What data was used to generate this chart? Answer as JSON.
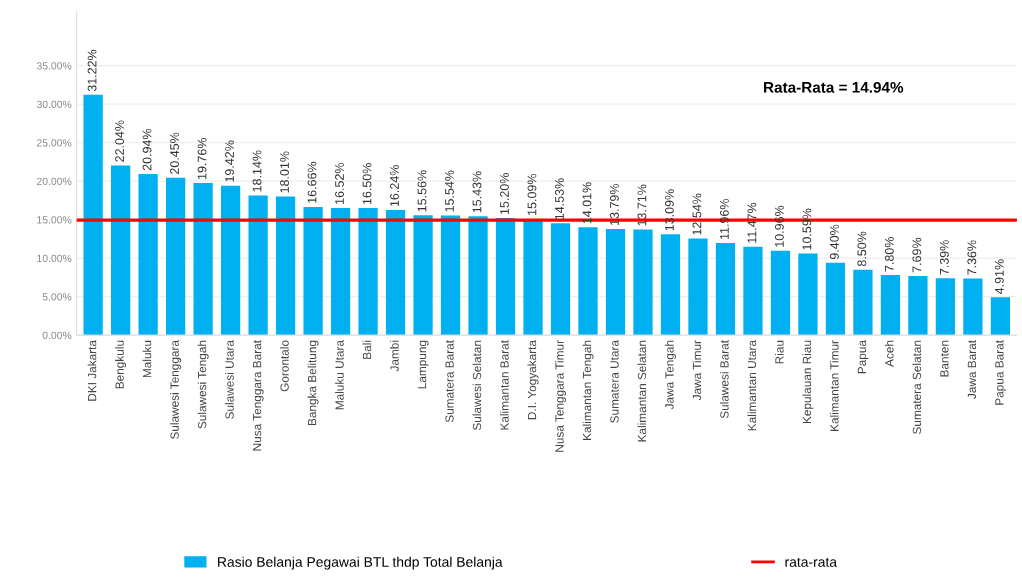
{
  "chart_data": {
    "type": "bar",
    "categories": [
      "DKI Jakarta",
      "Bengkulu",
      "Maluku",
      "Sulawesi Tenggara",
      "Sulawesi Tengah",
      "Sulawesi Utara",
      "Nusa Tenggara Barat",
      "Gorontalo",
      "Bangka Belitung",
      "Maluku Utara",
      "Bali",
      "Jambi",
      "Lampung",
      "Sumatera Barat",
      "Sulawesi Selatan",
      "Kalimantan Barat",
      "D.I. Yogyakarta",
      "Nusa Tenggara Timur",
      "Kalimantan Tengah",
      "Sumatera Utara",
      "Kalimantan Selatan",
      "Jawa Tengah",
      "Jawa Timur",
      "Sulawesi Barat",
      "Kalimantan Utara",
      "Riau",
      "Kepulauan Riau",
      "Kalimantan Timur",
      "Papua",
      "Aceh",
      "Sumatera Selatan",
      "Banten",
      "Jawa Barat",
      "Papua Barat"
    ],
    "series": [
      {
        "name": "Rasio Belanja Pegawai BTL thdp Total Belanja",
        "color": "#00b0f0",
        "values": [
          31.22,
          22.04,
          20.94,
          20.45,
          19.76,
          19.42,
          18.14,
          18.01,
          16.66,
          16.52,
          16.5,
          16.24,
          15.56,
          15.54,
          15.43,
          15.2,
          15.09,
          14.53,
          14.01,
          13.79,
          13.71,
          13.09,
          12.54,
          11.96,
          11.47,
          10.96,
          10.59,
          9.4,
          8.5,
          7.8,
          7.69,
          7.39,
          7.36,
          4.91
        ],
        "value_labels": [
          "31.22%",
          "22.04%",
          "20.94%",
          "20.45%",
          "19.76%",
          "19.42%",
          "18.14%",
          "18.01%",
          "16.66%",
          "16.52%",
          "16.50%",
          "16.24%",
          "15.56%",
          "15.54%",
          "15.43%",
          "15.20%",
          "15.09%",
          "14.53%",
          "14.01%",
          "13.79%",
          "13.71%",
          "13.09%",
          "12.54%",
          "11.96%",
          "11.47%",
          "10.96%",
          "10.59%",
          "9.40%",
          "8.50%",
          "7.80%",
          "7.69%",
          "7.39%",
          "7.36%",
          "4.91%"
        ]
      }
    ],
    "ref_lines": [
      {
        "axis": "y",
        "value": 14.94,
        "label": "rata-rata",
        "color": "#ff0000"
      }
    ],
    "annotations": [
      "Rata-Rata = 14.94%"
    ],
    "ylim": [
      0,
      42
    ],
    "yticks": [
      {
        "value": 0,
        "label": "0.00%"
      },
      {
        "value": 5,
        "label": "5.00%"
      },
      {
        "value": 10,
        "label": "10.00%"
      },
      {
        "value": 15,
        "label": "15.00%"
      },
      {
        "value": 20,
        "label": "20.00%"
      },
      {
        "value": 25,
        "label": "25.00%"
      },
      {
        "value": 30,
        "label": "30.00%"
      },
      {
        "value": 35,
        "label": "35.00%"
      }
    ],
    "grid": "y",
    "legend": "bottom"
  }
}
